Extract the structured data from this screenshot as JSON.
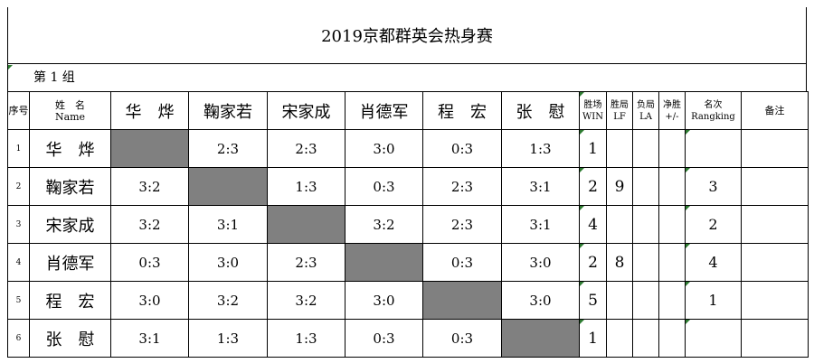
{
  "title": "2019京都群英会热身赛",
  "group_label": "第 1 组",
  "header": {
    "index": "序号",
    "name_cn": "姓　名",
    "name_en": "Name",
    "players": [
      "华　烨",
      "鞠家若",
      "宋家成",
      "肖德军",
      "程　宏",
      "张　慰"
    ],
    "win_cn": "胜场",
    "win_en": "WIN",
    "lf_cn": "胜局",
    "lf_en": "LF",
    "la_cn": "负局",
    "la_en": "LA",
    "net_cn": "净胜",
    "net_en": "+/-",
    "rank_cn": "名次",
    "rank_en": "Rangking",
    "note": "备注"
  },
  "rows": [
    {
      "index": "1",
      "name": "华　烨",
      "scores": [
        "",
        "2:3",
        "2:3",
        "3:0",
        "0:3",
        "1:3"
      ],
      "win": "1",
      "lf": "",
      "la": "",
      "net": "",
      "rank": "",
      "note": ""
    },
    {
      "index": "2",
      "name": "鞠家若",
      "scores": [
        "3:2",
        "",
        "1:3",
        "0:3",
        "2:3",
        "3:1"
      ],
      "win": "2",
      "lf": "9",
      "la": "",
      "net": "",
      "rank": "3",
      "note": ""
    },
    {
      "index": "3",
      "name": "宋家成",
      "scores": [
        "3:2",
        "3:1",
        "",
        "3:2",
        "2:3",
        "3:1"
      ],
      "win": "4",
      "lf": "",
      "la": "",
      "net": "",
      "rank": "2",
      "note": ""
    },
    {
      "index": "4",
      "name": "肖德军",
      "scores": [
        "0:3",
        "3:0",
        "2:3",
        "",
        "0:3",
        "3:0"
      ],
      "win": "2",
      "lf": "8",
      "la": "",
      "net": "",
      "rank": "4",
      "note": ""
    },
    {
      "index": "5",
      "name": "程　宏",
      "scores": [
        "3:0",
        "3:2",
        "3:2",
        "3:0",
        "",
        "3:0"
      ],
      "win": "5",
      "lf": "",
      "la": "",
      "net": "",
      "rank": "1",
      "note": ""
    },
    {
      "index": "6",
      "name": "张　慰",
      "scores": [
        "3:1",
        "1:3",
        "1:3",
        "0:3",
        "0:3",
        ""
      ],
      "win": "1",
      "lf": "",
      "la": "",
      "net": "",
      "rank": "",
      "note": ""
    }
  ],
  "colors": {
    "self_match_cell": "#808080",
    "cell_marker": "#2e7d32"
  }
}
